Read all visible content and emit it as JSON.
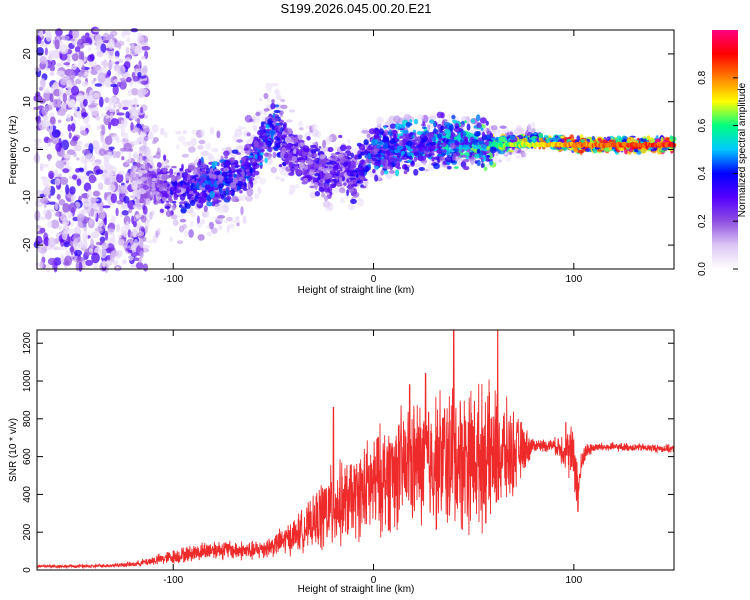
{
  "title": "S199.2026.045.00.20.E21",
  "colors": {
    "snr_line": "#ee2a2a",
    "axis": "#000000",
    "plot_bg": "#ffffff"
  },
  "chart_data": [
    {
      "type": "heatmap",
      "name": "spectrogram",
      "xlabel": "Height of straight line (km)",
      "ylabel": "Frequency (Hz)",
      "xlim": [
        -168,
        150
      ],
      "ylim": [
        -25,
        25
      ],
      "xticks": [
        -100,
        0,
        100
      ],
      "yticks": [
        -20,
        -10,
        0,
        10,
        20
      ],
      "xtick_labels": [
        "-100",
        "0",
        "100"
      ],
      "ytick_labels": [
        "-20",
        "-10",
        "0",
        "10",
        "20"
      ],
      "colorbar": {
        "label": "Normalized spectral amplitude",
        "range": [
          0,
          1
        ],
        "ticks": [
          0.0,
          0.2,
          0.4,
          0.6,
          0.8
        ],
        "tick_labels": [
          "0.0",
          "0.2",
          "0.4",
          "0.6",
          "0.8"
        ],
        "colormap": [
          "#ffffff",
          "#dcc6f5",
          "#8e4fe0",
          "#5500ff",
          "#0000ff",
          "#00c8ff",
          "#00ff80",
          "#ffff00",
          "#ff8000",
          "#ff0000",
          "#ff0080"
        ]
      },
      "ridge": {
        "x": [
          -120,
          -100,
          -80,
          -65,
          -55,
          -50,
          -45,
          -35,
          -25,
          -15,
          -10,
          0,
          20,
          40,
          60,
          80,
          100,
          150
        ],
        "freq": [
          -7,
          -8,
          -7,
          -5,
          2,
          5,
          1,
          -2,
          -5,
          -3,
          -6,
          0,
          1,
          2,
          1,
          2,
          1,
          1
        ],
        "strength": [
          0.15,
          0.35,
          0.45,
          0.4,
          0.5,
          0.45,
          0.35,
          0.3,
          0.35,
          0.3,
          0.35,
          0.45,
          0.5,
          0.55,
          0.65,
          0.75,
          0.85,
          0.95
        ]
      }
    },
    {
      "type": "line",
      "name": "snr",
      "xlabel": "Height of straight line (km)",
      "ylabel": "SNR (10 * v/v)",
      "xlim": [
        -168,
        150
      ],
      "ylim": [
        0,
        1270
      ],
      "xticks": [
        -100,
        0,
        100
      ],
      "yticks": [
        0,
        200,
        400,
        600,
        800,
        1000,
        1200
      ],
      "xtick_labels": [
        "-100",
        "0",
        "100"
      ],
      "ytick_labels": [
        "0",
        "200",
        "400",
        "600",
        "800",
        "1000",
        "1200"
      ],
      "envelope": {
        "x": [
          -168,
          -140,
          -120,
          -100,
          -80,
          -60,
          -50,
          -40,
          -30,
          -25,
          -20,
          -10,
          0,
          10,
          20,
          30,
          40,
          50,
          60,
          70,
          80,
          90,
          95,
          100,
          102,
          105,
          110,
          130,
          150
        ],
        "mean": [
          20,
          20,
          30,
          70,
          110,
          100,
          130,
          180,
          250,
          300,
          330,
          380,
          450,
          520,
          560,
          580,
          590,
          600,
          600,
          620,
          660,
          660,
          640,
          600,
          430,
          620,
          650,
          650,
          640
        ],
        "amplitude": [
          10,
          10,
          15,
          45,
          60,
          60,
          70,
          110,
          150,
          250,
          260,
          250,
          320,
          360,
          380,
          420,
          460,
          440,
          420,
          260,
          40,
          40,
          120,
          200,
          150,
          60,
          30,
          25,
          25
        ]
      },
      "peaks": [
        {
          "x": -20,
          "y": 860
        },
        {
          "x": 18,
          "y": 980
        },
        {
          "x": 26,
          "y": 1040
        },
        {
          "x": 40,
          "y": 1270
        },
        {
          "x": 62,
          "y": 1270
        },
        {
          "x": 96,
          "y": 780
        },
        {
          "x": 102,
          "y": 310
        }
      ]
    }
  ]
}
